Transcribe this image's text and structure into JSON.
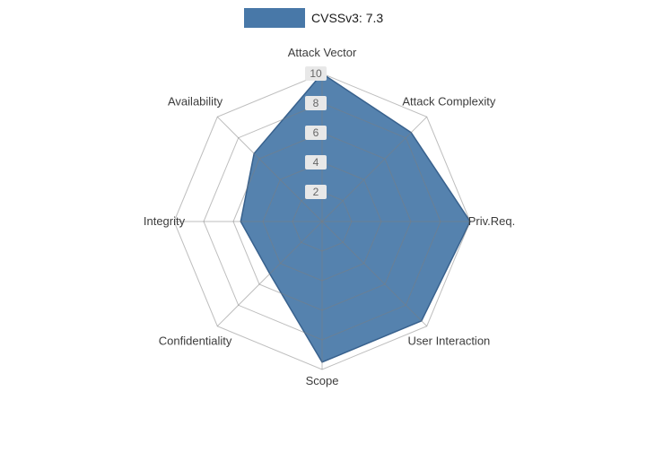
{
  "legend": {
    "label": "CVSSv3: 7.3",
    "swatch_color": "#4878a8"
  },
  "chart_data": {
    "type": "radar",
    "title": "CVSSv3: 7.3",
    "categories": [
      "Attack Vector",
      "Attack Complexity",
      "Priv.Req.",
      "User Interaction",
      "Scope",
      "Confidentiality",
      "Integrity",
      "Availability"
    ],
    "series": [
      {
        "name": "CVSSv3: 7.3",
        "values": [
          10,
          8.5,
          10,
          9.5,
          9.5,
          5,
          5.5,
          6.5
        ]
      }
    ],
    "radial_ticks": [
      2,
      4,
      6,
      8,
      10
    ],
    "rlim": [
      0,
      10
    ],
    "axis_start": "top",
    "direction": "clockwise",
    "grid": true,
    "legend_position": "top",
    "colors": {
      "fill": "#4878a8",
      "edge": "#38618d",
      "grid": "#7d7d7d",
      "tick_bg": "#e8e8e8",
      "axis_label": "#3c3c3c",
      "tick_label": "#666666"
    }
  }
}
